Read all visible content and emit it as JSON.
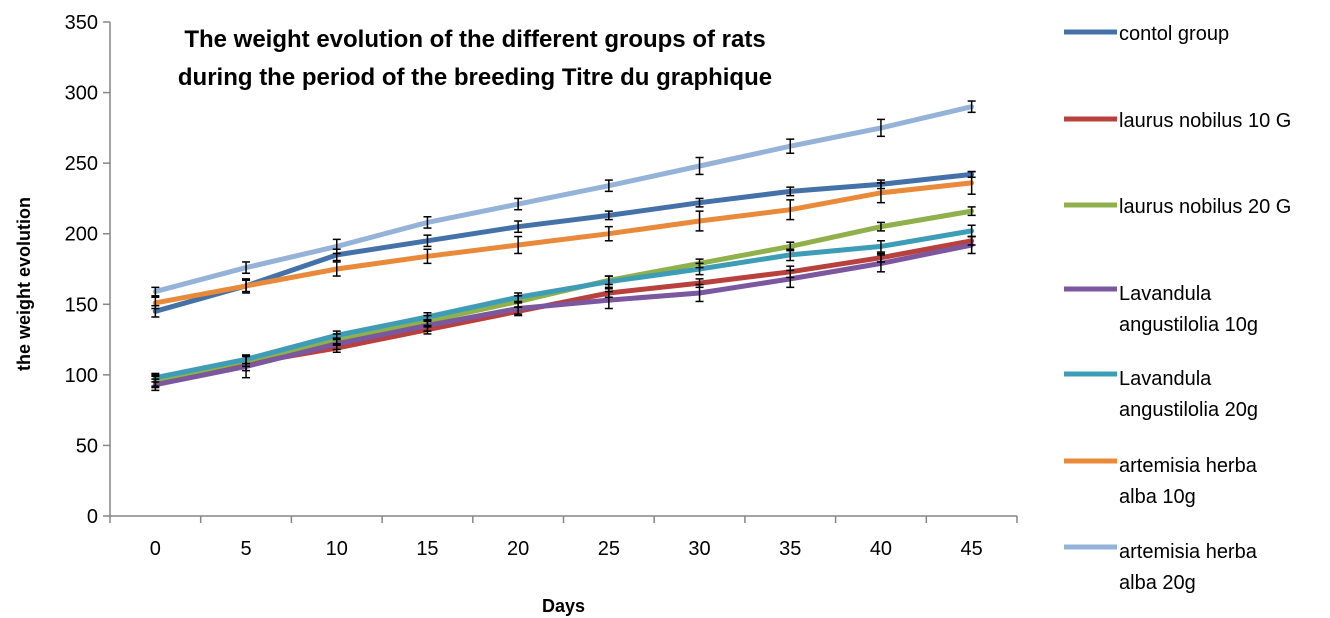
{
  "chart_data": {
    "type": "line",
    "title_lines": [
      "The weight evolution of the different groups of rats",
      "during the period of the breeding Titre du graphique"
    ],
    "xlabel": "Days",
    "ylabel": "the weight evolution",
    "x": [
      0,
      5,
      10,
      15,
      20,
      25,
      30,
      35,
      40,
      45
    ],
    "ylim": [
      0,
      350
    ],
    "yticks": [
      0,
      50,
      100,
      150,
      200,
      250,
      300,
      350
    ],
    "error_bars": true,
    "grid": false,
    "legend_position": "right",
    "series": [
      {
        "name": "contol group",
        "legend_lines": [
          "contol group"
        ],
        "color": "#4472A8",
        "values": [
          145,
          163,
          185,
          195,
          205,
          213,
          222,
          230,
          235,
          242
        ],
        "errors": [
          4,
          5,
          4,
          4,
          4,
          3,
          3,
          3,
          3,
          2
        ]
      },
      {
        "name": "laurus nobilus 10 G",
        "legend_lines": [
          "laurus nobilus 10 G"
        ],
        "color": "#B8403D",
        "values": [
          95,
          108,
          119,
          132,
          145,
          158,
          165,
          173,
          183,
          195
        ],
        "errors": [
          4,
          5,
          3,
          3,
          3,
          3,
          3,
          4,
          3,
          3
        ]
      },
      {
        "name": "laurus nobilus 20 G",
        "legend_lines": [
          "laurus nobilus 20 G"
        ],
        "color": "#8FB04A",
        "values": [
          96,
          110,
          125,
          138,
          152,
          167,
          179,
          191,
          205,
          216
        ],
        "errors": [
          4,
          4,
          4,
          4,
          4,
          3,
          3,
          3,
          3,
          3
        ]
      },
      {
        "name": "Lavandula angustilolia 10g",
        "legend_lines": [
          "Lavandula",
          "angustilolia 10g"
        ],
        "color": "#7A579E",
        "values": [
          93,
          106,
          122,
          135,
          147,
          153,
          158,
          168,
          179,
          192
        ],
        "errors": [
          4,
          8,
          4,
          4,
          4,
          6,
          6,
          6,
          6,
          6
        ]
      },
      {
        "name": "Lavandula angustilolia 20g",
        "legend_lines": [
          "Lavandula",
          "angustilolia 20g"
        ],
        "color": "#3E9DB6",
        "values": [
          98,
          111,
          128,
          141,
          155,
          166,
          175,
          185,
          191,
          202
        ],
        "errors": [
          3,
          3,
          3,
          3,
          3,
          4,
          4,
          4,
          4,
          4
        ]
      },
      {
        "name": "artemisia herba alba 10g",
        "legend_lines": [
          "artemisia herba",
          "alba 10g"
        ],
        "color": "#E98A3A",
        "values": [
          151,
          163,
          175,
          184,
          192,
          200,
          209,
          217,
          229,
          236
        ],
        "errors": [
          4,
          4,
          5,
          5,
          6,
          5,
          7,
          7,
          7,
          8
        ]
      },
      {
        "name": "artemisia herba alba 20g",
        "legend_lines": [
          "artemisia herba",
          "alba 20g"
        ],
        "color": "#95B2D8",
        "values": [
          159,
          176,
          191,
          208,
          221,
          234,
          248,
          262,
          275,
          290
        ],
        "errors": [
          3,
          4,
          5,
          4,
          4,
          4,
          6,
          5,
          6,
          4
        ]
      }
    ]
  }
}
